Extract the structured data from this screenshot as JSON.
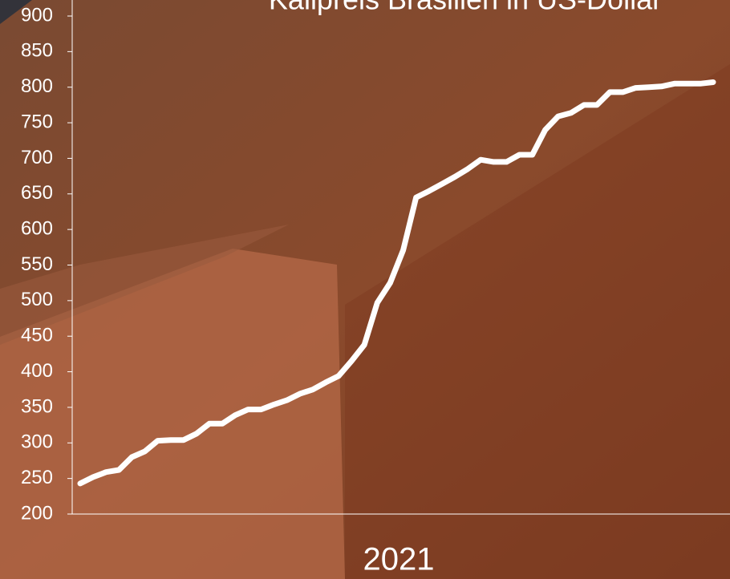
{
  "chart_data": {
    "type": "line",
    "title": "Kalipreis Brasilien in US-Dollar",
    "x_label": "2021",
    "categories": [
      null,
      null,
      null,
      null,
      null,
      null,
      null,
      null,
      null,
      null,
      null,
      null,
      null,
      null,
      null,
      null,
      null,
      null,
      null,
      null,
      null,
      null,
      null,
      null,
      null,
      null,
      null,
      null,
      null,
      null,
      null,
      null,
      null,
      null,
      null,
      null,
      null,
      null,
      null,
      null,
      null,
      null,
      null,
      null,
      null,
      null,
      null,
      null,
      null,
      null
    ],
    "values": [
      243,
      252,
      259,
      262,
      280,
      288,
      303,
      304,
      304,
      313,
      327,
      327,
      339,
      347,
      347,
      354,
      360,
      369,
      375,
      385,
      394,
      415,
      438,
      497,
      525,
      571,
      645,
      654,
      664,
      674,
      685,
      698,
      695,
      695,
      705,
      705,
      740,
      759,
      764,
      775,
      775,
      793,
      793,
      799,
      800,
      801,
      805,
      805,
      805,
      807
    ],
    "color": "#ffffff",
    "ylim": [
      200,
      900
    ],
    "yticks": [
      200,
      250,
      300,
      350,
      400,
      450,
      500,
      550,
      600,
      650,
      700,
      750,
      800,
      850,
      900
    ]
  }
}
